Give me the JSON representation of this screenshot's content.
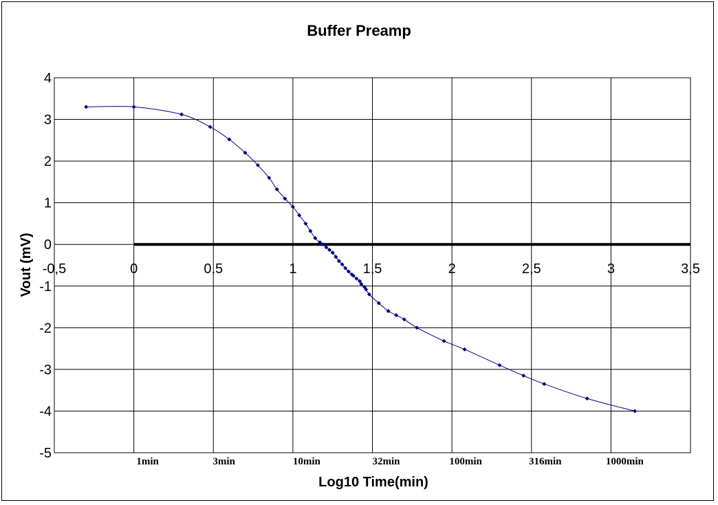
{
  "chart_data": {
    "type": "scatter",
    "title": "Buffer Preamp",
    "xlabel": "Log10 Time(min)",
    "ylabel": "Vout (mV)",
    "xlim": [
      -0.5,
      3.5
    ],
    "ylim": [
      -5,
      4
    ],
    "x_ticks": [
      -0.5,
      0,
      0.5,
      1,
      1.5,
      2,
      2.5,
      3,
      3.5
    ],
    "x_tick_labels": [
      "-0,5",
      "0",
      "0,5",
      "1",
      "1,5",
      "2",
      "2,5",
      "3",
      "3,5"
    ],
    "y_ticks": [
      -5,
      -4,
      -3,
      -2,
      -1,
      0,
      1,
      2,
      3,
      4
    ],
    "y_tick_labels": [
      "-5",
      "-4",
      "-3",
      "-2",
      "-1",
      "0",
      "1",
      "2",
      "3",
      "4"
    ],
    "grid": true,
    "zero_line": true,
    "annotations": [
      {
        "text": "1min",
        "x": 0.0
      },
      {
        "text": "3min",
        "x": 0.48
      },
      {
        "text": "10min",
        "x": 1.0
      },
      {
        "text": "32min",
        "x": 1.5
      },
      {
        "text": "100min",
        "x": 2.0
      },
      {
        "text": "316min",
        "x": 2.5
      },
      {
        "text": "1000min",
        "x": 3.0
      }
    ],
    "series": [
      {
        "color": "#000080",
        "smooth": true,
        "x": [
          -0.3,
          0.0,
          0.3,
          0.48,
          0.6,
          0.7,
          0.78,
          0.85,
          0.9,
          0.95,
          1.0,
          1.04,
          1.08,
          1.11,
          1.14,
          1.17,
          1.19,
          1.21,
          1.23,
          1.25,
          1.27,
          1.29,
          1.31,
          1.33,
          1.35,
          1.37,
          1.38,
          1.4,
          1.42,
          1.43,
          1.45,
          1.46,
          1.48,
          1.54,
          1.6,
          1.65,
          1.7,
          1.78,
          1.95,
          2.08,
          2.3,
          2.45,
          2.58,
          2.85,
          3.15
        ],
        "y": [
          3.3,
          3.3,
          3.12,
          2.82,
          2.52,
          2.2,
          1.9,
          1.6,
          1.32,
          1.1,
          0.9,
          0.7,
          0.5,
          0.32,
          0.15,
          0.05,
          0.0,
          -0.07,
          -0.13,
          -0.2,
          -0.3,
          -0.4,
          -0.48,
          -0.57,
          -0.65,
          -0.72,
          -0.75,
          -0.82,
          -0.88,
          -0.95,
          -1.02,
          -1.08,
          -1.2,
          -1.41,
          -1.6,
          -1.7,
          -1.8,
          -2.0,
          -2.32,
          -2.52,
          -2.9,
          -3.15,
          -3.35,
          -3.7,
          -4.0
        ]
      }
    ]
  }
}
